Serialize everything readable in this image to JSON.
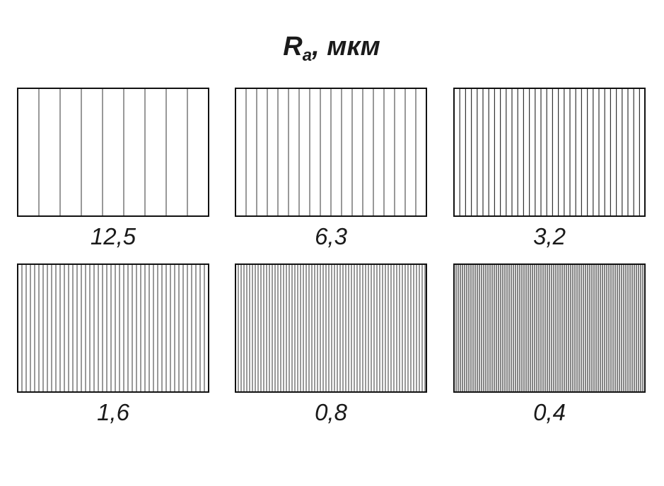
{
  "title": {
    "symbol": "R",
    "subscript": "a",
    "unit": ", мкм"
  },
  "panels": [
    {
      "label": "12,5"
    },
    {
      "label": "6,3"
    },
    {
      "label": "3,2"
    },
    {
      "label": "1,6"
    },
    {
      "label": "0,8"
    },
    {
      "label": "0,4"
    }
  ]
}
